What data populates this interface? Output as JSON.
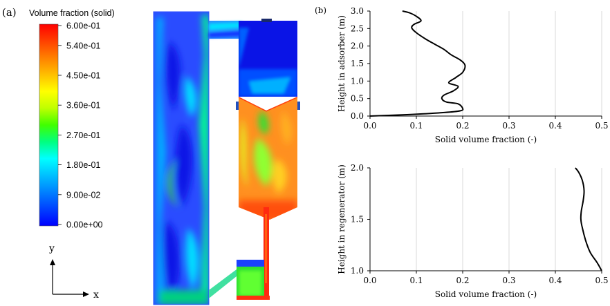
{
  "panel_a": {
    "label": "(a)",
    "colorbar": {
      "title": "Volume fraction (solid)",
      "tick_labels": [
        "6.00e-01",
        "5.40e-01",
        "4.50e-01",
        "3.60e-01",
        "2.70e-01",
        "1.80e-01",
        "9.00e-02",
        "0.00e+00"
      ],
      "tick_values": [
        0.6,
        0.54,
        0.45,
        0.36,
        0.27,
        0.18,
        0.09,
        0.0
      ],
      "range": [
        0.0,
        0.6
      ],
      "colors": [
        "#0000ff",
        "#0040ff",
        "#0080ff",
        "#00bfff",
        "#00ffff",
        "#00ff80",
        "#40ff00",
        "#bfff00",
        "#ffff00",
        "#ffbf00",
        "#ff8000",
        "#ff4000",
        "#ff0000"
      ]
    },
    "axes_triad": {
      "y_label": "y",
      "x_label": "x"
    },
    "field_colors": {
      "riser_bg": "#2a4cff",
      "dilute": "#0a14e6",
      "mid": "#00c8ff",
      "green": "#30e030",
      "regenerator": "#ff9020",
      "regen_hot": "#ff5010",
      "wall": "#ff2a10"
    }
  },
  "panel_b": {
    "label": "(b)"
  },
  "chart_data": [
    {
      "type": "line",
      "xlabel": "Solid volume fraction (-)",
      "ylabel": "Height in adsorber (m)",
      "xlim": [
        0,
        0.5
      ],
      "ylim": [
        0,
        3.0
      ],
      "x_ticks": [
        0,
        0.1,
        0.2,
        0.3,
        0.4,
        0.5
      ],
      "x_tick_labels": [
        "0.0",
        "0.1",
        "0.2",
        "0.3",
        "0.4",
        "0.5"
      ],
      "y_ticks": [
        0,
        0.5,
        1.0,
        1.5,
        2.0,
        2.5,
        3.0
      ],
      "y_tick_labels": [
        "0.0",
        "0.5",
        "1.0",
        "1.5",
        "2.0",
        "2.5",
        "3.0"
      ],
      "grid": "vertical",
      "line_color": "#000000",
      "series": [
        {
          "x": [
            0.0,
            0.08,
            0.16,
            0.195,
            0.2,
            0.19,
            0.165,
            0.155,
            0.16,
            0.18,
            0.19,
            0.17,
            0.185,
            0.2,
            0.205,
            0.195,
            0.175,
            0.16,
            0.14,
            0.12,
            0.1,
            0.09,
            0.095,
            0.11,
            0.1,
            0.085,
            0.07
          ],
          "y": [
            0.0,
            0.04,
            0.1,
            0.15,
            0.22,
            0.35,
            0.4,
            0.5,
            0.6,
            0.72,
            0.85,
            0.95,
            1.1,
            1.25,
            1.45,
            1.6,
            1.75,
            1.9,
            2.05,
            2.2,
            2.38,
            2.52,
            2.62,
            2.72,
            2.85,
            2.95,
            3.0
          ]
        }
      ]
    },
    {
      "type": "line",
      "xlabel": "Solid volume fraction (-)",
      "ylabel": "Height in regenerator (m)",
      "xlim": [
        0,
        0.5
      ],
      "ylim": [
        1.0,
        2.0
      ],
      "x_ticks": [
        0,
        0.1,
        0.2,
        0.3,
        0.4,
        0.5
      ],
      "x_tick_labels": [
        "0.0",
        "0.1",
        "0.2",
        "0.3",
        "0.4",
        "0.5"
      ],
      "y_ticks": [
        1.0,
        1.5,
        2.0
      ],
      "y_tick_labels": [
        "1.0",
        "1.5",
        "2.0"
      ],
      "grid": "vertical",
      "line_color": "#000000",
      "series": [
        {
          "x": [
            0.5,
            0.49,
            0.475,
            0.465,
            0.458,
            0.455,
            0.456,
            0.46,
            0.462,
            0.458,
            0.45,
            0.443
          ],
          "y": [
            1.0,
            1.08,
            1.18,
            1.3,
            1.42,
            1.5,
            1.58,
            1.68,
            1.78,
            1.88,
            1.96,
            2.0
          ]
        }
      ]
    }
  ]
}
